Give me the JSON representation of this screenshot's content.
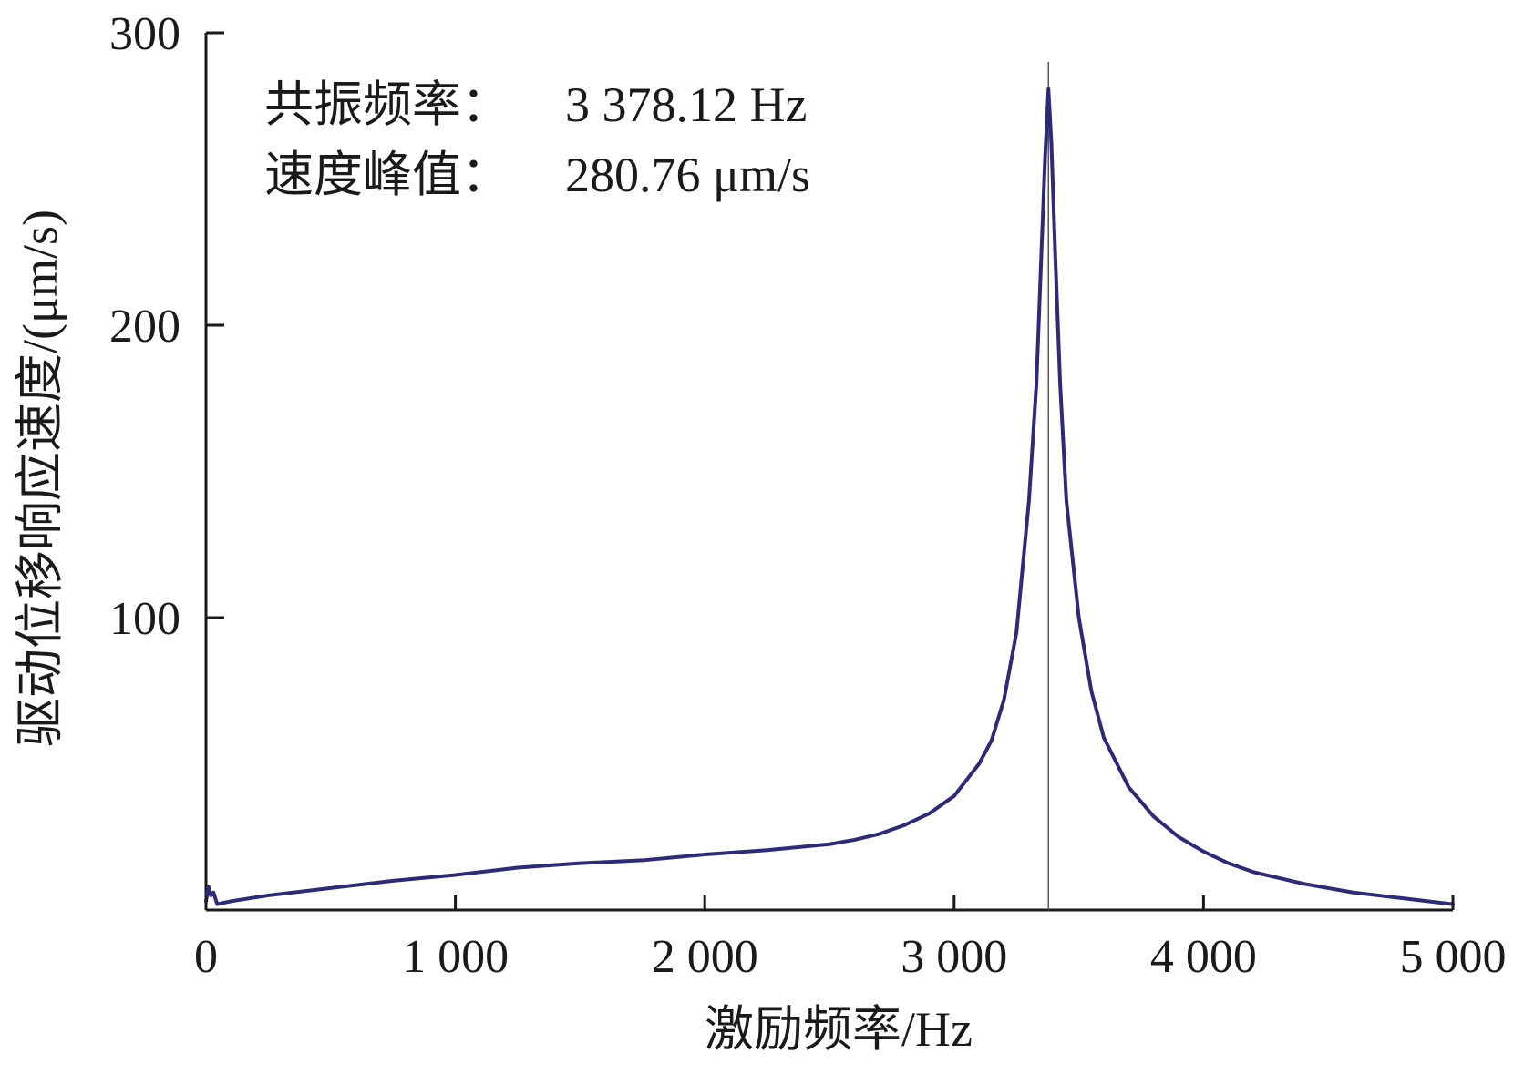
{
  "chart_data": {
    "type": "line",
    "xlabel": "激励频率/Hz",
    "ylabel": "驱动位移响应速度/(μm/s)",
    "xlim": [
      0,
      5000
    ],
    "ylim": [
      0,
      300
    ],
    "x_ticks": [
      0,
      1000,
      2000,
      3000,
      4000,
      5000
    ],
    "x_tick_labels": [
      "0",
      "1 000",
      "2 000",
      "3 000",
      "4 000",
      "5 000"
    ],
    "y_ticks": [
      100,
      200,
      300
    ],
    "y_tick_labels": [
      "100",
      "200",
      "300"
    ],
    "grid": false,
    "legend": "none",
    "annotations": [
      {
        "label": "共振频率：",
        "value": "3 378.12 Hz"
      },
      {
        "label": "速度峰值：",
        "value": "280.76 μm/s"
      }
    ],
    "marker_line_x": 3378.12,
    "series": [
      {
        "color": "#2e2a7a",
        "x": [
          0,
          10,
          20,
          30,
          45,
          100,
          250,
          500,
          750,
          1000,
          1250,
          1500,
          1750,
          2000,
          2250,
          2500,
          2600,
          2700,
          2800,
          2900,
          3000,
          3100,
          3150,
          3200,
          3250,
          3300,
          3330,
          3350,
          3365,
          3378.12,
          3390,
          3405,
          3425,
          3450,
          3500,
          3550,
          3600,
          3700,
          3800,
          3900,
          4000,
          4100,
          4200,
          4300,
          4400,
          4500,
          4600,
          4700,
          4800,
          4900,
          5000
        ],
        "y": [
          3,
          8,
          5,
          6,
          2,
          3,
          5,
          7.5,
          10,
          12,
          14.5,
          16,
          17,
          19,
          20.5,
          22.5,
          24,
          26,
          29,
          33,
          39,
          50,
          58,
          72,
          95,
          140,
          180,
          225,
          258,
          280.76,
          262,
          225,
          180,
          140,
          100,
          75,
          59,
          42,
          32,
          25,
          20,
          16,
          13,
          11,
          9,
          7.5,
          6,
          5,
          4,
          3,
          2
        ]
      }
    ]
  }
}
